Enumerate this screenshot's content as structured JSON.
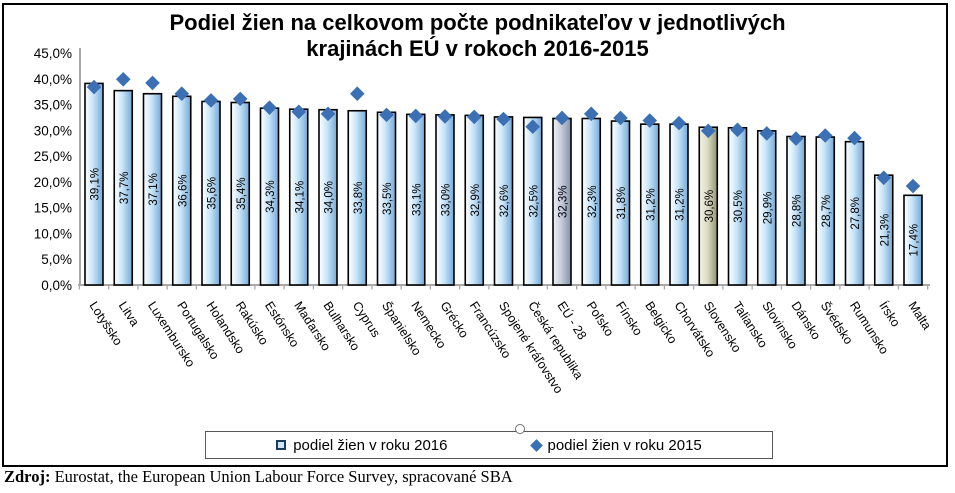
{
  "title": {
    "line1": "Podiel žien na celkovom počte podnikateľov v jednotlivých",
    "line2": "krajinách EÚ v rokoch 2016-2015"
  },
  "legend": {
    "items": [
      {
        "label": "podiel žien v roku 2016",
        "marker": "square"
      },
      {
        "label": "podiel žien v roku 2015",
        "marker": "diamond"
      }
    ]
  },
  "source": {
    "label_bold": "Zdroj:",
    "text": " Eurostat, the European Union Labour Force Survey, spracované SBA"
  },
  "colors": {
    "bar_fill_light": "#ffffff",
    "bar_fill_mid": "#c9e5f8",
    "bar_fill_dark": "#74a9d8",
    "eu_fill_light": "#eef0f4",
    "eu_fill_mid": "#c6cdda",
    "eu_fill_dark": "#8290ac",
    "sk_fill_light": "#f3f2e6",
    "sk_fill_mid": "#dcdcc6",
    "sk_fill_dark": "#92946f",
    "diamond": "#3b70b4",
    "bar_stroke": "#000000",
    "axis_line": "#a8a8a8",
    "legend_square_fill": "#cfe7f9",
    "legend_square_border": "#1d3a5f",
    "frame_border": "#000000"
  },
  "chart_data": {
    "type": "bar",
    "title": "Podiel žien na celkovom počte podnikateľov v jednotlivých krajinách EÚ v rokoch 2016-2015",
    "xlabel": "",
    "ylabel": "",
    "ylim": [
      0,
      45
    ],
    "ytick_values": [
      0,
      5,
      10,
      15,
      20,
      25,
      30,
      35,
      40,
      45
    ],
    "ytick_labels": [
      "0,0%",
      "5,0%",
      "10,0%",
      "15,0%",
      "20,0%",
      "25,0%",
      "30,0%",
      "35,0%",
      "40,0%",
      "45,0%"
    ],
    "grid": false,
    "legend_position": "bottom",
    "categories": [
      "Lotyšsko",
      "Litva",
      "Luxembursko",
      "Portugalsko",
      "Holandsko",
      "Rakúsko",
      "Estónsko",
      "Maďarsko",
      "Bulharsko",
      "Cyprus",
      "Španielsko",
      "Nemecko",
      "Grécko",
      "Francúzsko",
      "Spojené kráľovstvo",
      "Česká republika",
      "EÚ - 28",
      "Poľsko",
      "Fínsko",
      "Belgicko",
      "Chorvátsko",
      "Slovensko",
      "Taliansko",
      "Slovinsko",
      "Dánsko",
      "Švédsko",
      "Rumunsko",
      "Írsko",
      "Malta"
    ],
    "bar_styles": [
      "blue",
      "blue",
      "blue",
      "blue",
      "blue",
      "blue",
      "blue",
      "blue",
      "blue",
      "blue",
      "blue",
      "blue",
      "blue",
      "blue",
      "blue",
      "blue",
      "gray",
      "blue",
      "blue",
      "blue",
      "blue",
      "olive",
      "blue",
      "blue",
      "blue",
      "blue",
      "blue",
      "blue",
      "blue"
    ],
    "series": [
      {
        "name": "podiel žien v roku 2016",
        "type": "bar",
        "values": [
          39.1,
          37.7,
          37.1,
          36.6,
          35.6,
          35.4,
          34.3,
          34.1,
          34.0,
          33.8,
          33.5,
          33.1,
          33.0,
          32.9,
          32.6,
          32.5,
          32.3,
          32.3,
          31.8,
          31.2,
          31.2,
          30.6,
          30.5,
          29.9,
          28.8,
          28.7,
          27.8,
          21.3,
          17.4
        ],
        "labels": [
          "39,1%",
          "37,7%",
          "37,1%",
          "36,6%",
          "35,6%",
          "35,4%",
          "34,3%",
          "34,1%",
          "34,0%",
          "33,8%",
          "33,5%",
          "33,1%",
          "33,0%",
          "32,9%",
          "32,6%",
          "32,5%",
          "32,3%",
          "32,3%",
          "31,8%",
          "31,2%",
          "31,2%",
          "30,6%",
          "30,5%",
          "29,9%",
          "28,8%",
          "28,7%",
          "27,8%",
          "21,3%",
          "17,4%"
        ]
      },
      {
        "name": "podiel žien v roku 2015",
        "type": "scatter-diamond",
        "values_estimated": true,
        "values": [
          38.4,
          39.9,
          39.2,
          37.1,
          35.8,
          36.1,
          34.4,
          33.6,
          33.2,
          37.1,
          33.0,
          32.8,
          32.7,
          32.6,
          32.2,
          30.7,
          32.4,
          33.2,
          32.4,
          31.9,
          31.4,
          29.9,
          30.1,
          29.4,
          28.4,
          29.0,
          28.5,
          20.8,
          19.2
        ]
      }
    ]
  }
}
